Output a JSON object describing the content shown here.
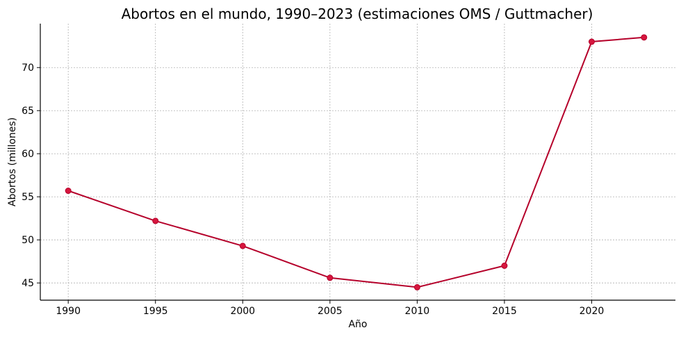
{
  "chart_data": {
    "type": "line",
    "title": "Abortos en el mundo, 1990–2023 (estimaciones OMS / Guttmacher)",
    "xlabel": "Año",
    "ylabel": "Abortos (millones)",
    "x": [
      1990,
      1995,
      2000,
      2005,
      2010,
      2015,
      2020,
      2023
    ],
    "series": [
      {
        "name": "Abortos (millones)",
        "values": [
          55.7,
          52.2,
          49.3,
          45.6,
          44.5,
          47.0,
          73.0,
          73.5
        ],
        "color": "#b5002a",
        "marker_color": "#d6163e",
        "marker": "circle"
      }
    ],
    "xticks": [
      1990,
      1995,
      2000,
      2005,
      2010,
      2015,
      2020
    ],
    "yticks": [
      45,
      50,
      55,
      60,
      65,
      70
    ],
    "xlim": [
      1988.4,
      2024.8
    ],
    "ylim": [
      43.0,
      75.1
    ],
    "grid": true,
    "legend": null
  }
}
